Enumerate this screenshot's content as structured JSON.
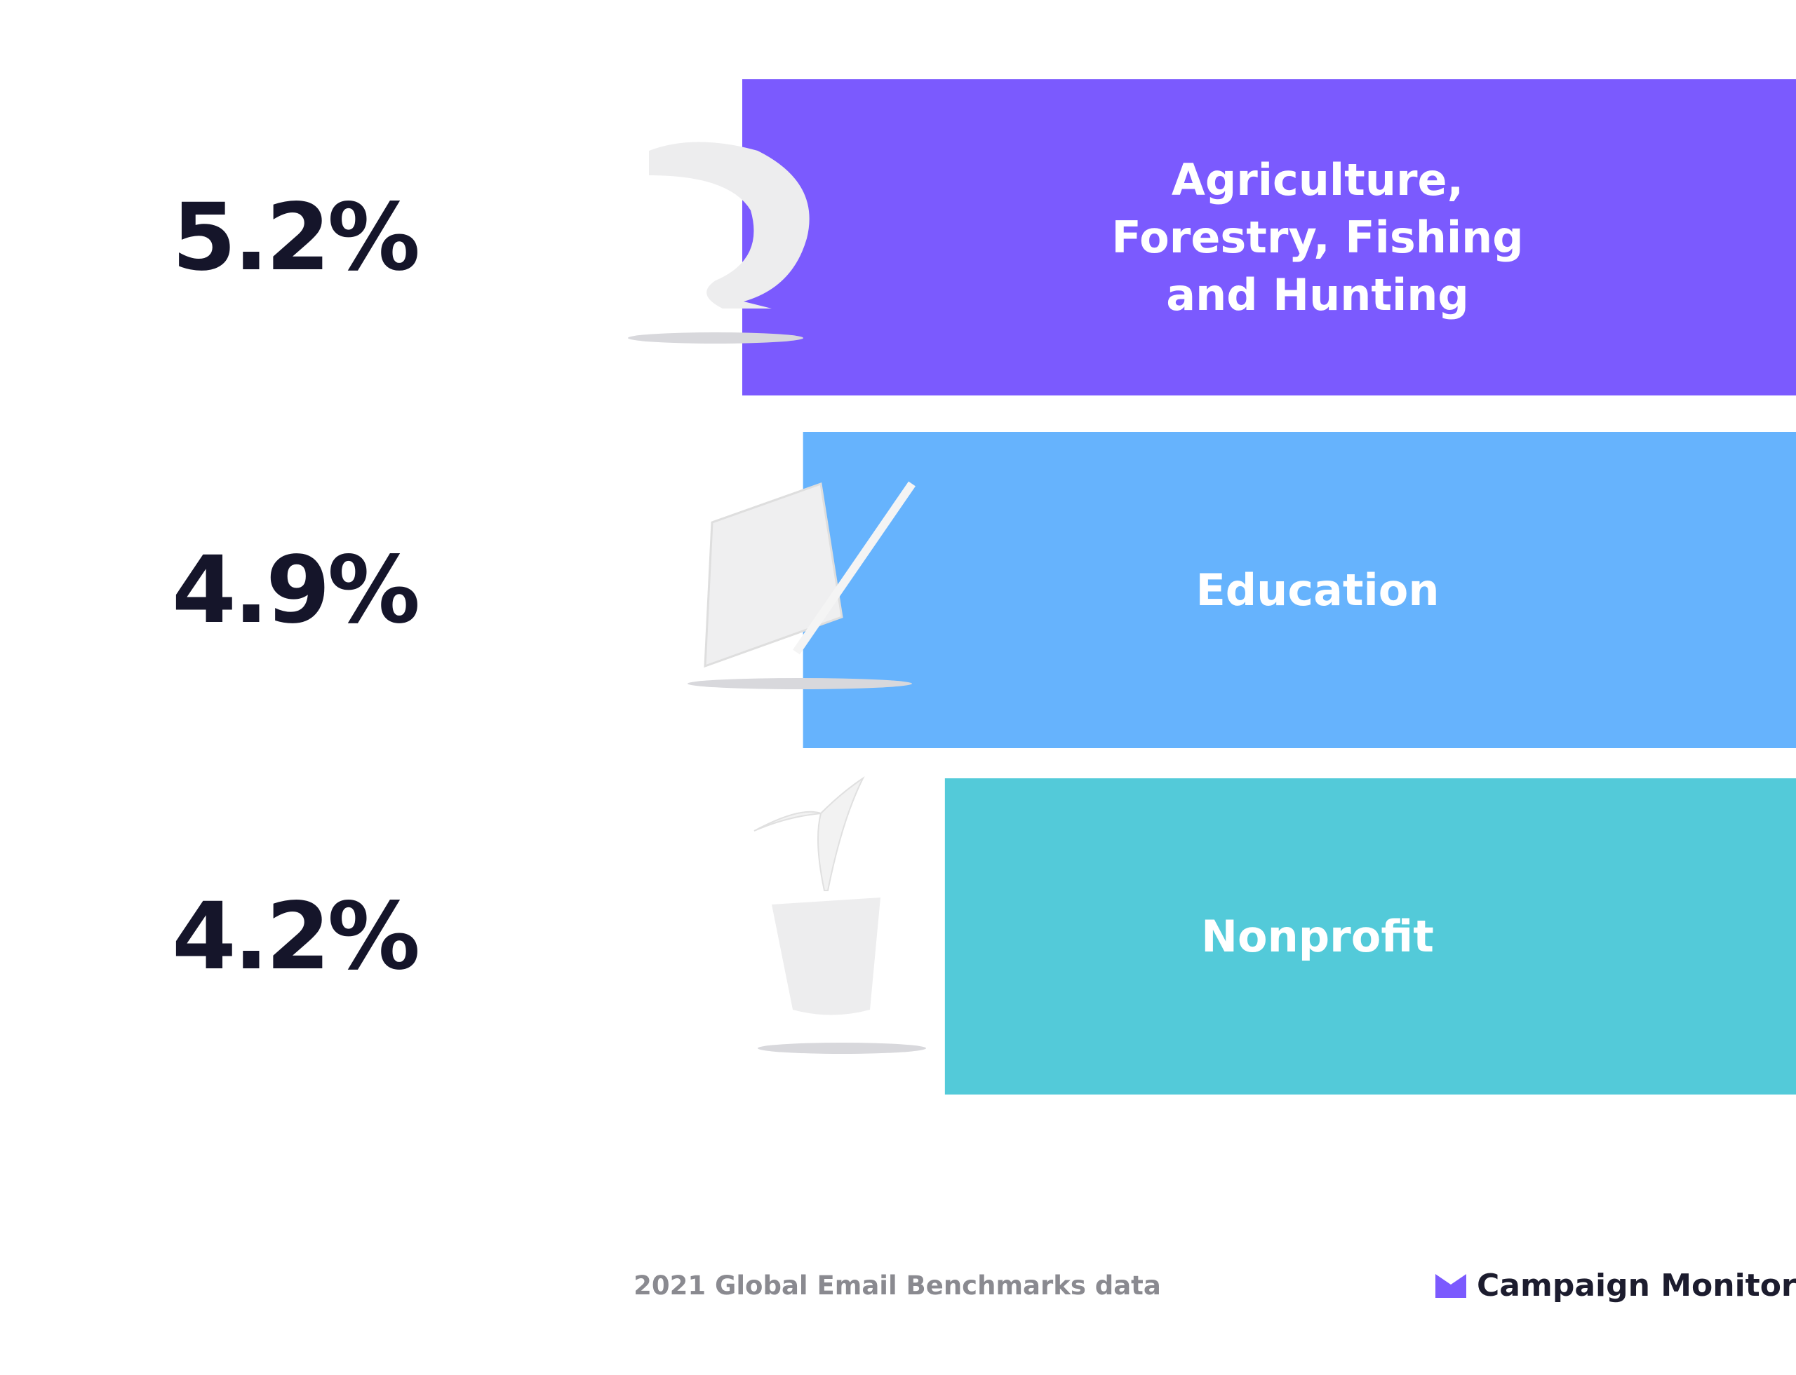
{
  "chart_data": {
    "type": "bar",
    "categories": [
      "Agriculture, Forestry, Fishing and Hunting",
      "Education",
      "Nonprofit"
    ],
    "values": [
      5.2,
      4.9,
      4.2
    ],
    "value_labels": [
      "5.2%",
      "4.9%",
      "4.2%"
    ],
    "colors": [
      "#7b5afe",
      "#66b3fd",
      "#53cad9"
    ],
    "footnote": "2021 Global Email Benchmarks data",
    "brand": "Campaign Monitor"
  }
}
